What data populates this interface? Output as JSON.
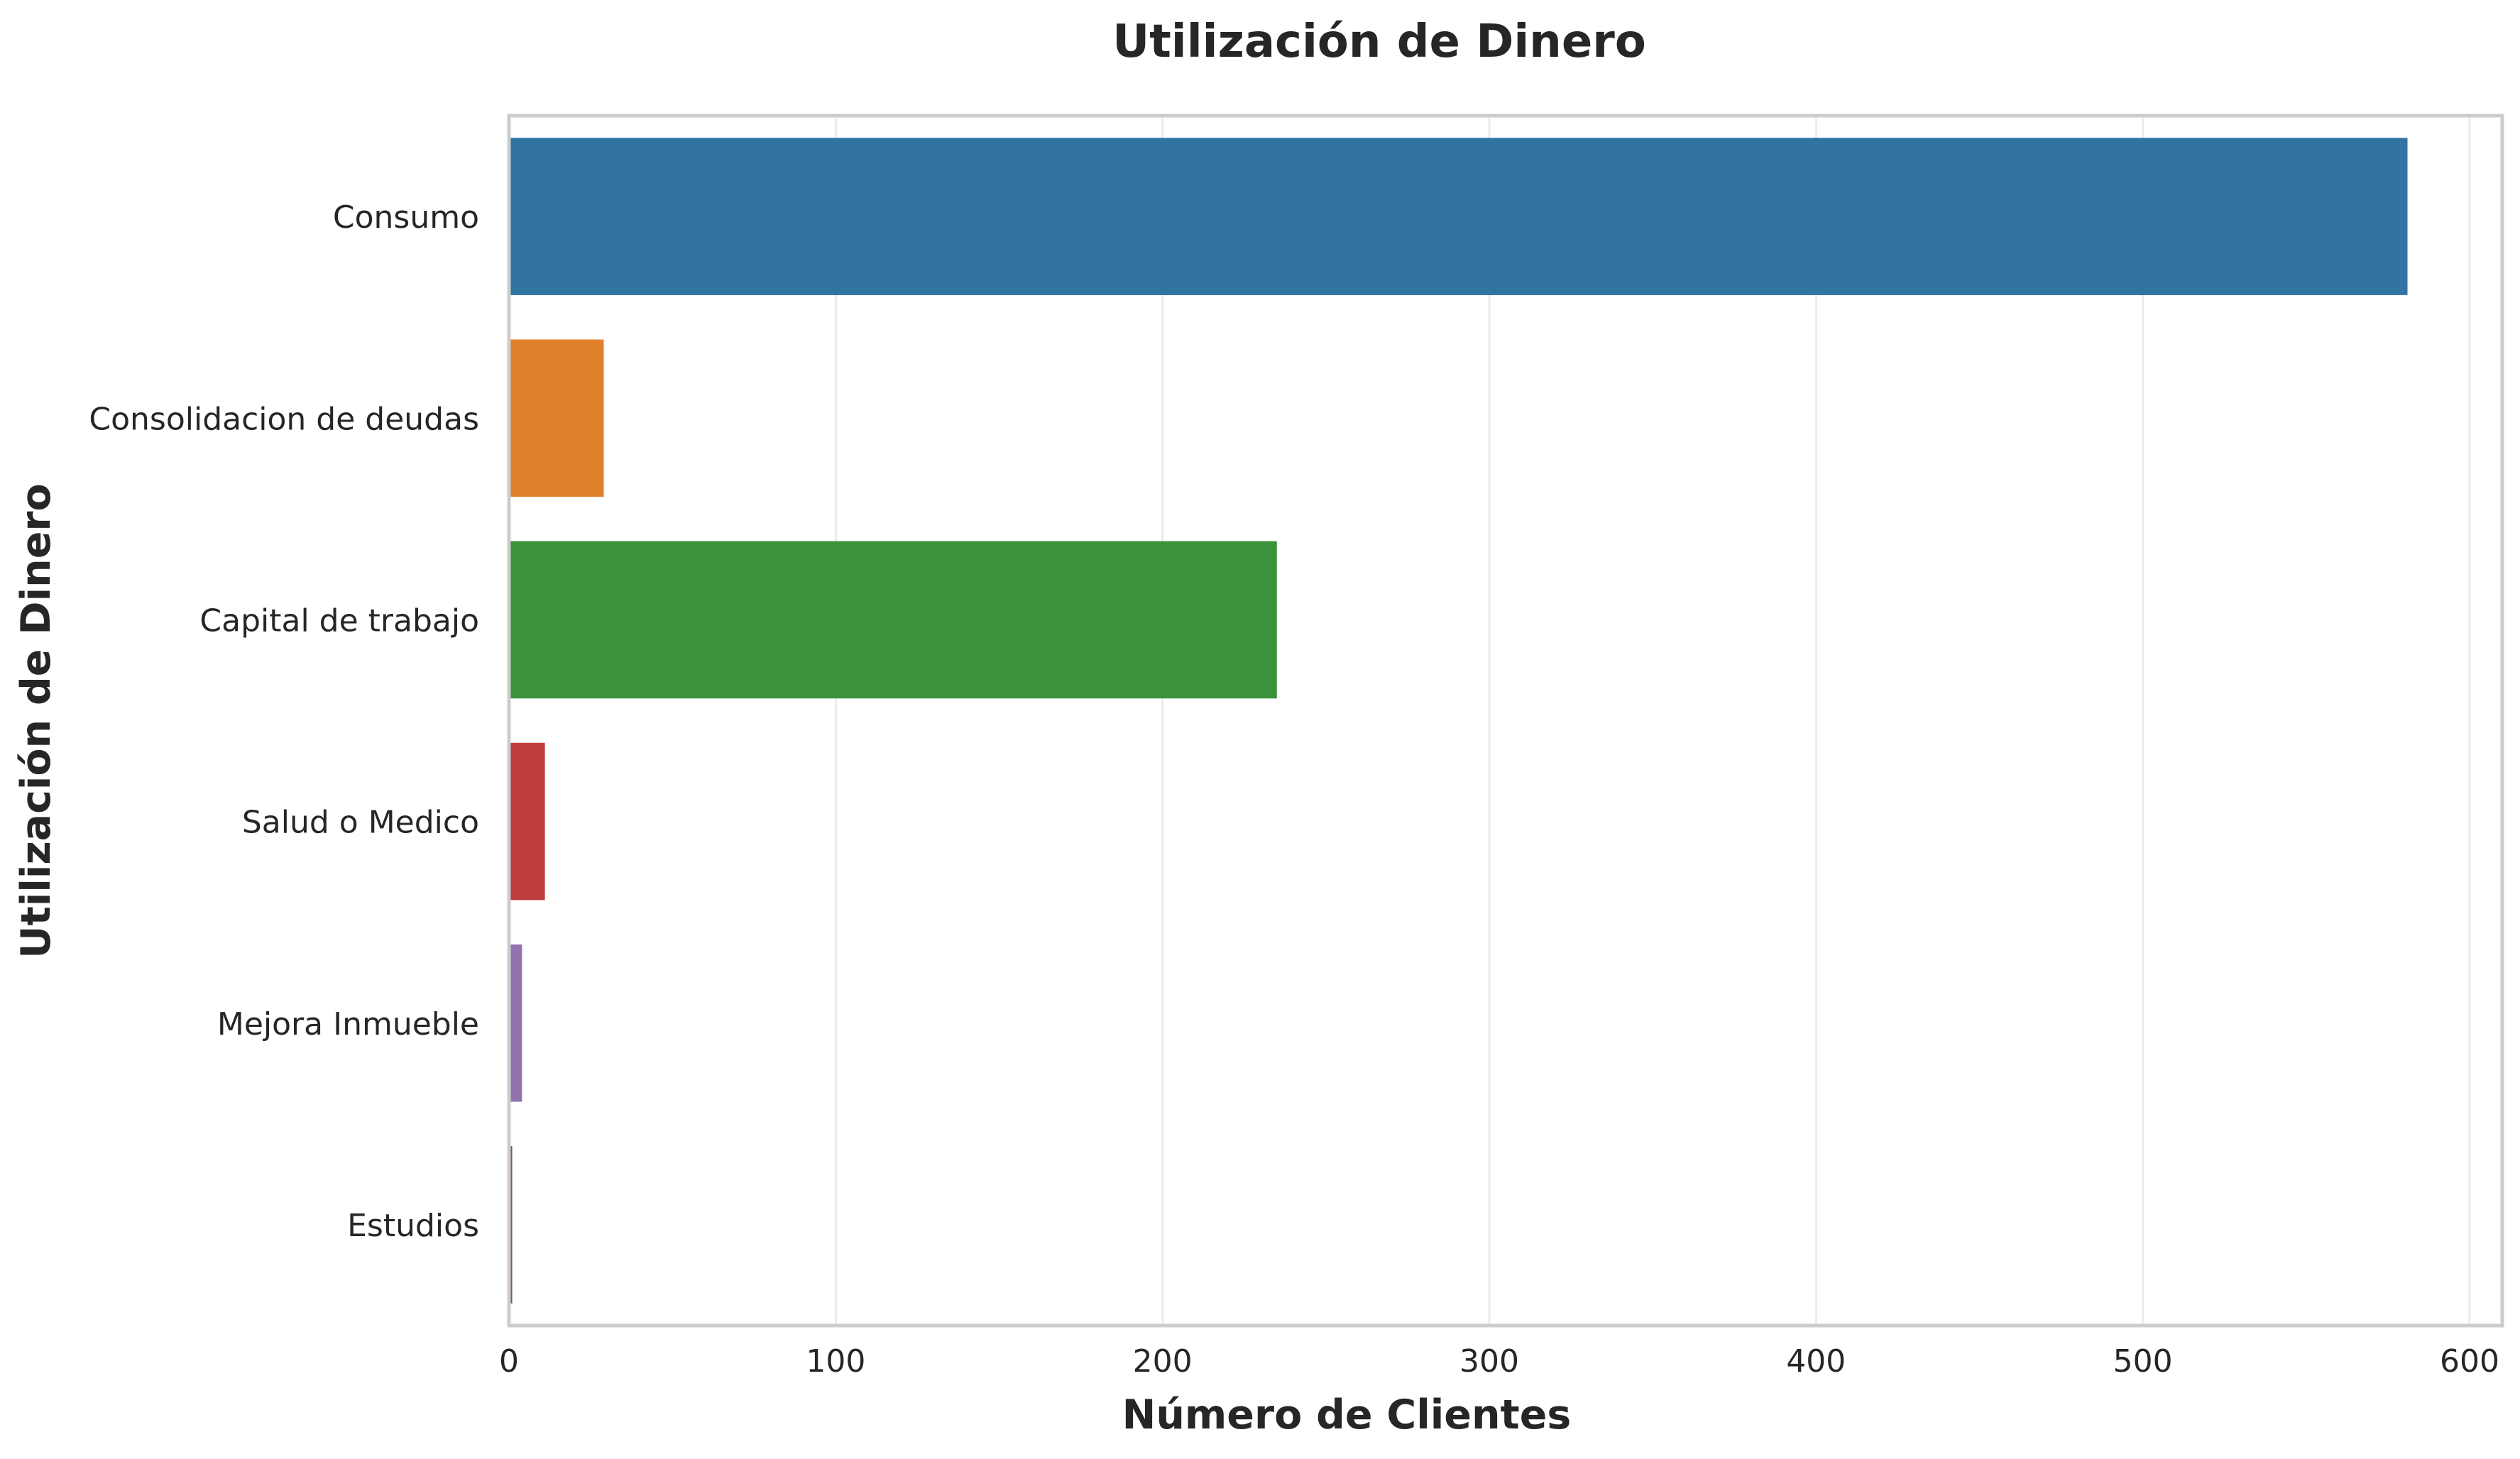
{
  "chart_data": {
    "type": "bar",
    "orientation": "horizontal",
    "title": "Utilización de Dinero",
    "xlabel": "Número de Clientes",
    "ylabel": "Utilización de Dinero",
    "categories": [
      "Consumo",
      "Consolidacion de deudas",
      "Capital de trabajo",
      "Salud o Medico",
      "Mejora Inmueble",
      "Estudios"
    ],
    "values": [
      581,
      29,
      235,
      11,
      4,
      1
    ],
    "colors": [
      "#3274a1",
      "#e1812c",
      "#3a923a",
      "#c03d3e",
      "#9372b2",
      "#845b53"
    ],
    "xlim": [
      0,
      610
    ],
    "xticks": [
      0,
      100,
      200,
      300,
      400,
      500,
      600
    ],
    "grid": "x-only"
  }
}
